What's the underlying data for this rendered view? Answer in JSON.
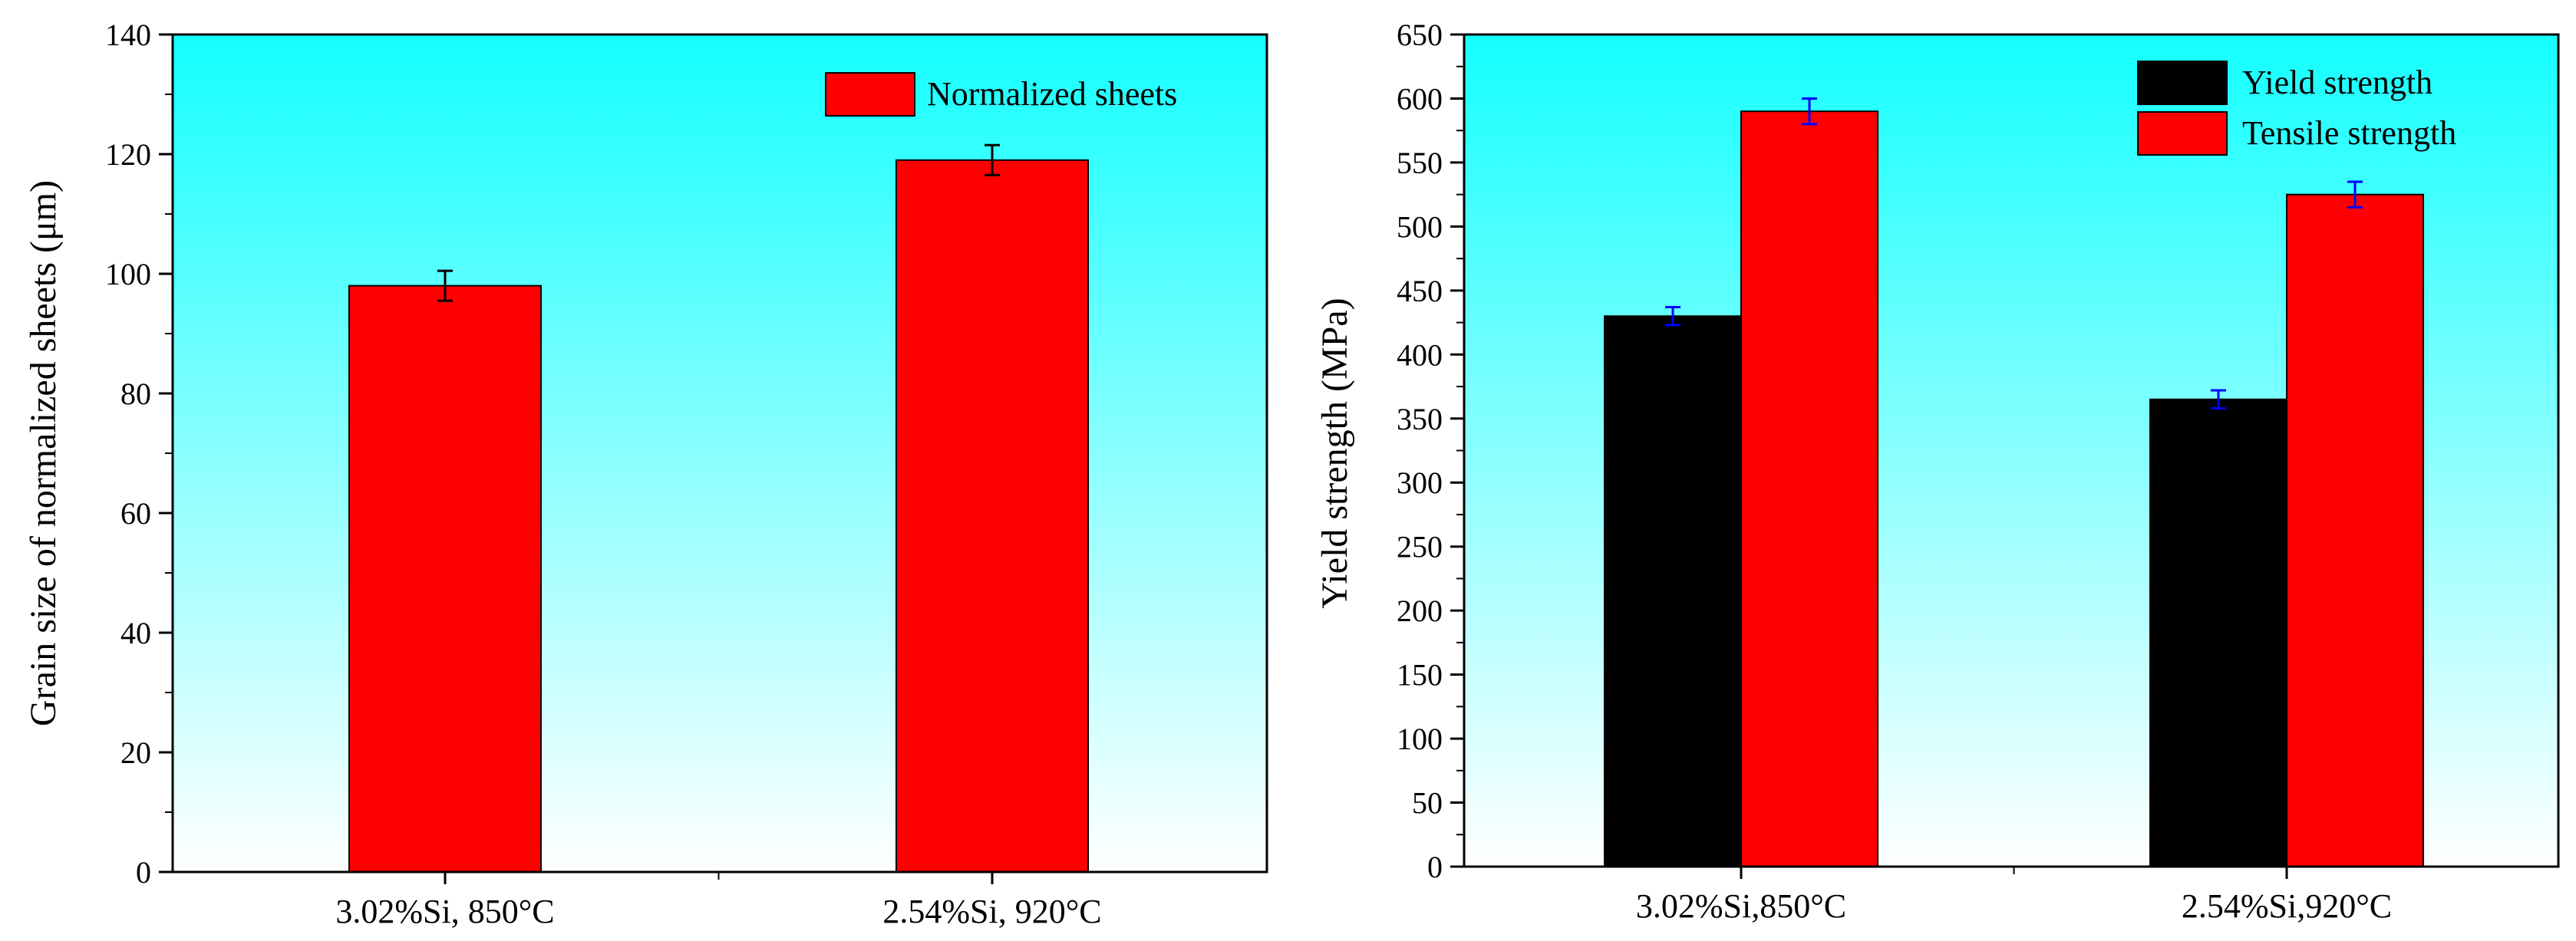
{
  "chart_data": [
    {
      "type": "bar",
      "title": "",
      "xlabel": "",
      "ylabel": "Grain size of normalized  sheets (μm)",
      "ylim": [
        0,
        140
      ],
      "ytick_step": 20,
      "yticks": [
        "0",
        "20",
        "40",
        "60",
        "80",
        "100",
        "120",
        "140"
      ],
      "categories": [
        "3.02%Si, 850°C",
        "2.54%Si, 920°C"
      ],
      "series": [
        {
          "name": "Normalized sheets",
          "color": "#ff0000",
          "errorbar_color": "#000000",
          "values": [
            98,
            119
          ],
          "errors": [
            2.5,
            2.5
          ]
        }
      ],
      "legend_position": "top-right",
      "background_gradient": [
        "#14ffff",
        "#ffffff"
      ]
    },
    {
      "type": "bar",
      "title": "",
      "xlabel": "",
      "ylabel": "Yield strength (MPa)",
      "ylim": [
        0,
        650
      ],
      "ytick_step": 50,
      "yticks": [
        "0",
        "50",
        "100",
        "150",
        "200",
        "250",
        "300",
        "350",
        "400",
        "450",
        "500",
        "550",
        "600",
        "650"
      ],
      "categories": [
        "3.02%Si,850°C",
        "2.54%Si,920°C"
      ],
      "series": [
        {
          "name": "Yield strength",
          "color": "#000000",
          "errorbar_color": "#0000ff",
          "values": [
            430,
            365
          ],
          "errors": [
            7,
            7
          ]
        },
        {
          "name": "Tensile strength",
          "color": "#ff0000",
          "errorbar_color": "#0000ff",
          "values": [
            590,
            525
          ],
          "errors": [
            10,
            10
          ]
        }
      ],
      "legend_position": "top-right",
      "background_gradient": [
        "#14ffff",
        "#ffffff"
      ]
    }
  ]
}
